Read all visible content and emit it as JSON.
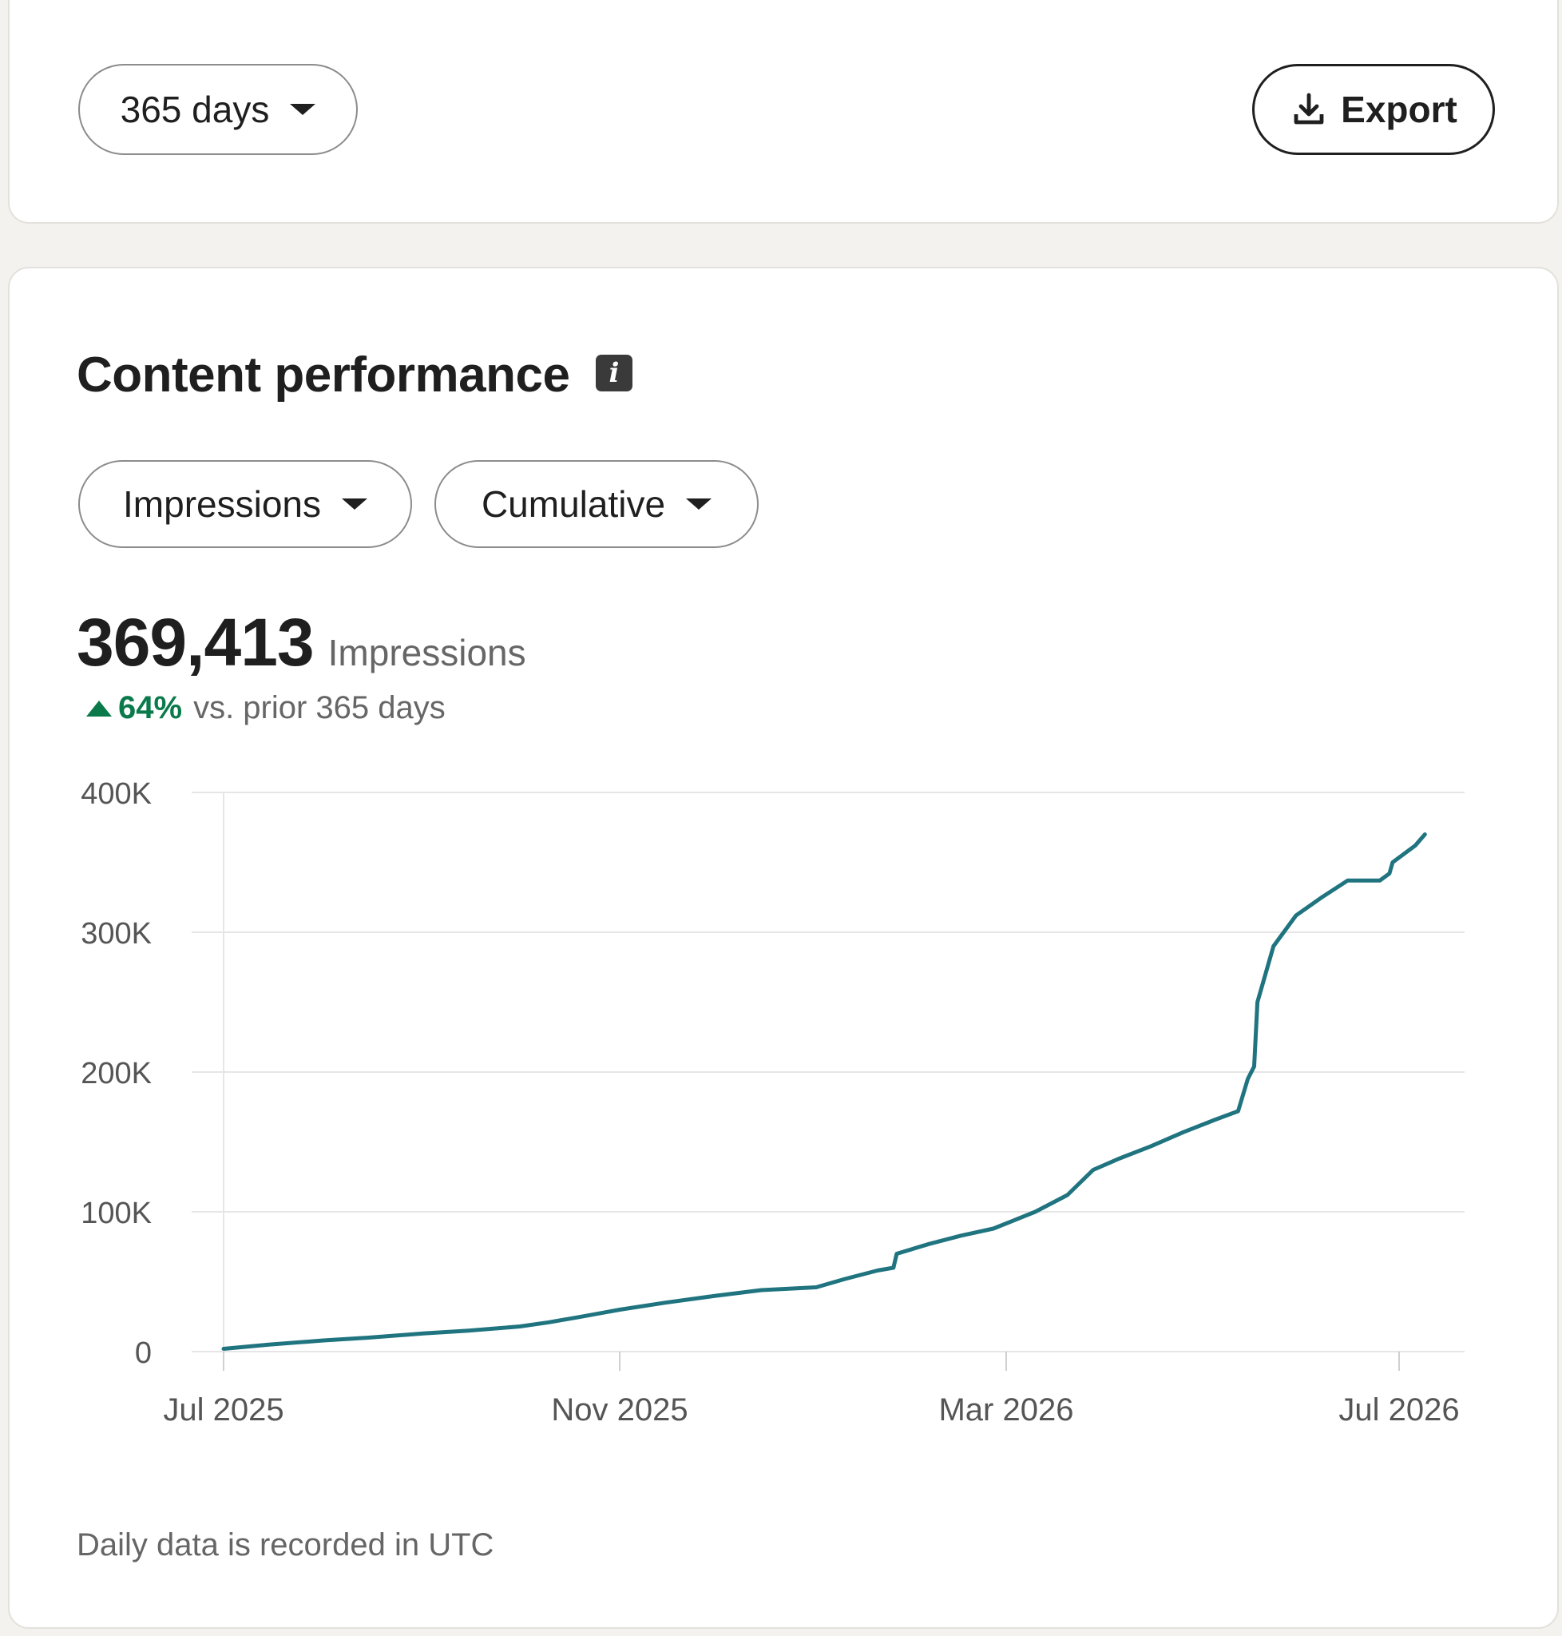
{
  "toolbar": {
    "range_label": "365 days",
    "export_label": "Export"
  },
  "panel": {
    "title": "Content performance",
    "metric_label": "Impressions",
    "mode_label": "Cumulative",
    "total_value": "369,413",
    "total_unit": "Impressions",
    "change_pct": "64%",
    "change_text": "vs. prior 365 days",
    "footnote": "Daily data is recorded in UTC"
  },
  "colors": {
    "line": "#1f7480",
    "positive": "#0b7a4b",
    "grid": "#e6e6e6"
  },
  "chart_data": {
    "type": "line",
    "xlabel": "",
    "ylabel": "",
    "ylim": [
      0,
      400000
    ],
    "y_ticks": [
      {
        "value": 0,
        "label": "0"
      },
      {
        "value": 100000,
        "label": "100K"
      },
      {
        "value": 200000,
        "label": "200K"
      },
      {
        "value": 300000,
        "label": "300K"
      },
      {
        "value": 400000,
        "label": "400K"
      }
    ],
    "x_ticks": [
      {
        "date": "2025-07-01",
        "label": "Jul 2025"
      },
      {
        "date": "2025-11-01",
        "label": "Nov 2025"
      },
      {
        "date": "2026-03-01",
        "label": "Mar 2026"
      },
      {
        "date": "2026-07-01",
        "label": "Jul 2026"
      }
    ],
    "grid": true,
    "legend": "none",
    "series": [
      {
        "points": [
          [
            "2025-07-01",
            2000
          ],
          [
            "2025-07-15",
            5000
          ],
          [
            "2025-08-01",
            8000
          ],
          [
            "2025-08-15",
            10000
          ],
          [
            "2025-09-01",
            13000
          ],
          [
            "2025-09-15",
            15000
          ],
          [
            "2025-10-01",
            18000
          ],
          [
            "2025-10-10",
            21000
          ],
          [
            "2025-10-20",
            25000
          ],
          [
            "2025-11-01",
            30000
          ],
          [
            "2025-11-15",
            35000
          ],
          [
            "2025-12-01",
            40000
          ],
          [
            "2025-12-15",
            44000
          ],
          [
            "2026-01-01",
            46000
          ],
          [
            "2026-01-10",
            52000
          ],
          [
            "2026-01-20",
            58000
          ],
          [
            "2026-01-25",
            60000
          ],
          [
            "2026-01-26",
            70000
          ],
          [
            "2026-02-05",
            77000
          ],
          [
            "2026-02-15",
            83000
          ],
          [
            "2026-02-25",
            88000
          ],
          [
            "2026-03-10",
            100000
          ],
          [
            "2026-03-20",
            112000
          ],
          [
            "2026-03-28",
            130000
          ],
          [
            "2026-04-05",
            138000
          ],
          [
            "2026-04-15",
            147000
          ],
          [
            "2026-04-25",
            157000
          ],
          [
            "2026-05-05",
            166000
          ],
          [
            "2026-05-12",
            172000
          ],
          [
            "2026-05-15",
            195000
          ],
          [
            "2026-05-17",
            204000
          ],
          [
            "2026-05-18",
            250000
          ],
          [
            "2026-05-23",
            290000
          ],
          [
            "2026-05-30",
            312000
          ],
          [
            "2026-06-07",
            325000
          ],
          [
            "2026-06-15",
            337000
          ],
          [
            "2026-06-25",
            337000
          ],
          [
            "2026-06-28",
            342000
          ],
          [
            "2026-06-29",
            350000
          ],
          [
            "2026-07-06",
            362000
          ],
          [
            "2026-07-09",
            370000
          ]
        ]
      }
    ]
  }
}
